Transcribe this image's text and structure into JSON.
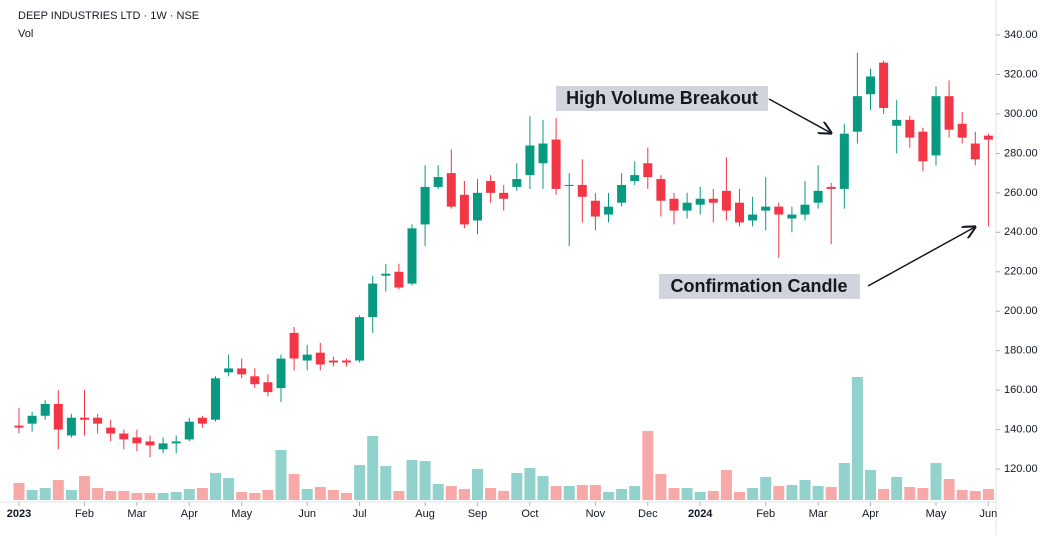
{
  "chart_data": {
    "type": "candlestick",
    "title": "DEEP INDUSTRIES LTD · 1W · NSE",
    "subtitle": "Vol",
    "x": [
      "2023-01-02",
      "2023-01-09",
      "2023-01-16",
      "2023-01-23",
      "2023-01-30",
      "2023-02-06",
      "2023-02-13",
      "2023-02-20",
      "2023-02-27",
      "2023-03-06",
      "2023-03-13",
      "2023-03-20",
      "2023-03-27",
      "2023-04-03",
      "2023-04-10",
      "2023-04-17",
      "2023-04-24",
      "2023-05-01",
      "2023-05-08",
      "2023-05-15",
      "2023-05-22",
      "2023-05-29",
      "2023-06-05",
      "2023-06-12",
      "2023-06-19",
      "2023-06-26",
      "2023-07-03",
      "2023-07-10",
      "2023-07-17",
      "2023-07-24",
      "2023-07-31",
      "2023-08-07",
      "2023-08-14",
      "2023-08-21",
      "2023-08-28",
      "2023-09-04",
      "2023-09-11",
      "2023-09-18",
      "2023-09-25",
      "2023-10-02",
      "2023-10-09",
      "2023-10-16",
      "2023-10-23",
      "2023-10-30",
      "2023-11-06",
      "2023-11-13",
      "2023-11-20",
      "2023-11-27",
      "2023-12-04",
      "2023-12-11",
      "2023-12-18",
      "2023-12-25",
      "2024-01-01",
      "2024-01-08",
      "2024-01-15",
      "2024-01-22",
      "2024-01-29",
      "2024-02-05",
      "2024-02-12",
      "2024-02-19",
      "2024-02-26",
      "2024-03-04",
      "2024-03-11",
      "2024-03-18",
      "2024-03-25",
      "2024-04-01",
      "2024-04-08",
      "2024-04-15",
      "2024-04-22",
      "2024-04-29",
      "2024-05-06",
      "2024-05-13",
      "2024-05-20",
      "2024-05-27",
      "2024-06-03"
    ],
    "open": [
      142,
      143,
      147,
      153,
      137,
      146,
      146,
      141,
      138,
      136,
      134,
      130,
      133,
      135,
      146,
      145,
      169,
      171,
      167,
      164,
      161,
      189,
      175,
      179,
      175,
      175,
      175,
      197,
      218,
      220,
      214,
      244,
      263,
      270,
      259,
      246,
      266,
      260,
      263,
      269,
      275,
      287,
      264,
      264,
      256,
      249,
      255,
      266,
      275,
      267,
      257,
      251,
      254,
      257,
      261,
      255,
      246,
      251,
      253,
      247,
      249,
      255,
      263,
      262,
      291,
      310,
      326,
      294,
      297,
      291,
      279,
      309,
      295,
      285,
      289
    ],
    "high": [
      151,
      149,
      155,
      160,
      148,
      160,
      148,
      145,
      140,
      140,
      137,
      136,
      137,
      146,
      147,
      167,
      178,
      176,
      171,
      168,
      178,
      192,
      183,
      184,
      177,
      176,
      198,
      218,
      224,
      224,
      244,
      274,
      274,
      282,
      266,
      267,
      269,
      264,
      275,
      299,
      297,
      298,
      270,
      277,
      260,
      260,
      270,
      276,
      283,
      269,
      260,
      260,
      263,
      262,
      278,
      262,
      258,
      268,
      255,
      253,
      266,
      274,
      265,
      295,
      331,
      323,
      327,
      307,
      299,
      293,
      314,
      317,
      301,
      291,
      290
    ],
    "low": [
      138,
      139,
      145,
      130,
      136,
      137,
      138,
      134,
      130,
      129,
      126,
      128,
      128,
      134,
      141,
      144,
      167,
      166,
      161,
      157,
      154,
      170,
      170,
      170,
      172,
      172,
      174,
      189,
      210,
      211,
      213,
      233,
      262,
      252,
      242,
      239,
      255,
      251,
      261,
      262,
      262,
      259,
      233,
      245,
      241,
      245,
      253,
      264,
      262,
      248,
      244,
      247,
      249,
      245,
      246,
      243,
      243,
      241,
      227,
      240,
      246,
      252,
      234,
      252,
      285,
      302,
      300,
      280,
      283,
      271,
      274,
      288,
      285,
      274,
      243
    ],
    "close": [
      141,
      147,
      153,
      140,
      146,
      145,
      143,
      138,
      135,
      133,
      132,
      133,
      134,
      144,
      143,
      166,
      171,
      168,
      163,
      159,
      176,
      176,
      178,
      173,
      174,
      174,
      197,
      214,
      219,
      212,
      242,
      263,
      268,
      253,
      244,
      260,
      260,
      257,
      267,
      284,
      285,
      262,
      264,
      258,
      248,
      253,
      264,
      269,
      268,
      256,
      251,
      255,
      257,
      255,
      251,
      245,
      249,
      253,
      249,
      249,
      254,
      261,
      262,
      290,
      309,
      319,
      303,
      297,
      288,
      276,
      309,
      292,
      288,
      277,
      287
    ],
    "volume": [
      17,
      10,
      12,
      20,
      10,
      24,
      12,
      9,
      9,
      7,
      7,
      7,
      8,
      11,
      12,
      27,
      22,
      8,
      7,
      10,
      50,
      26,
      11,
      13,
      10,
      7,
      35,
      64,
      34,
      9,
      40,
      39,
      16,
      14,
      11,
      31,
      12,
      9,
      27,
      32,
      24,
      14,
      14,
      15,
      15,
      8,
      11,
      14,
      69,
      26,
      12,
      12,
      8,
      9,
      30,
      8,
      12,
      23,
      14,
      15,
      20,
      14,
      13,
      37,
      123,
      30,
      11,
      23,
      13,
      12,
      37,
      21,
      10,
      9,
      11
    ],
    "up_color": "#089981",
    "down_color": "#f23645",
    "volume_up_color": "#92d2cc",
    "volume_down_color": "#f7a9a7",
    "ylim": [
      104.3,
      353.7
    ],
    "volume_ylim": [
      0,
      492
    ],
    "yticks": [
      {
        "value": 120,
        "label": "120.00"
      },
      {
        "value": 140,
        "label": "140.00"
      },
      {
        "value": 160,
        "label": "160.00"
      },
      {
        "value": 180,
        "label": "180.00"
      },
      {
        "value": 200,
        "label": "200.00"
      },
      {
        "value": 220,
        "label": "220.00"
      },
      {
        "value": 240,
        "label": "240.00"
      },
      {
        "value": 260,
        "label": "260.00"
      },
      {
        "value": 280,
        "label": "280.00"
      },
      {
        "value": 300,
        "label": "300.00"
      },
      {
        "value": 320,
        "label": "320.00"
      },
      {
        "value": 340,
        "label": "340.00"
      }
    ],
    "xticks": [
      {
        "value": "2023-01-02",
        "label": "2023"
      },
      {
        "value": "2023-02-06",
        "label": "Feb"
      },
      {
        "value": "2023-03-06",
        "label": "Mar"
      },
      {
        "value": "2023-04-03",
        "label": "Apr"
      },
      {
        "value": "2023-05-01",
        "label": "May"
      },
      {
        "value": "2023-06-05",
        "label": "Jun"
      },
      {
        "value": "2023-07-03",
        "label": "Jul"
      },
      {
        "value": "2023-08-07",
        "label": "Aug"
      },
      {
        "value": "2023-09-04",
        "label": "Sep"
      },
      {
        "value": "2023-10-02",
        "label": "Oct"
      },
      {
        "value": "2023-11-06",
        "label": "Nov"
      },
      {
        "value": "2023-12-04",
        "label": "Dec"
      },
      {
        "value": "2024-01-01",
        "label": "2024"
      },
      {
        "value": "2024-02-05",
        "label": "Feb"
      },
      {
        "value": "2024-03-04",
        "label": "Mar"
      },
      {
        "value": "2024-04-01",
        "label": "Apr"
      },
      {
        "value": "2024-05-06",
        "label": "May"
      },
      {
        "value": "2024-06-03",
        "label": "Jun"
      }
    ],
    "annotations": [
      "High Volume Breakout",
      "Confirmation Candle"
    ]
  }
}
